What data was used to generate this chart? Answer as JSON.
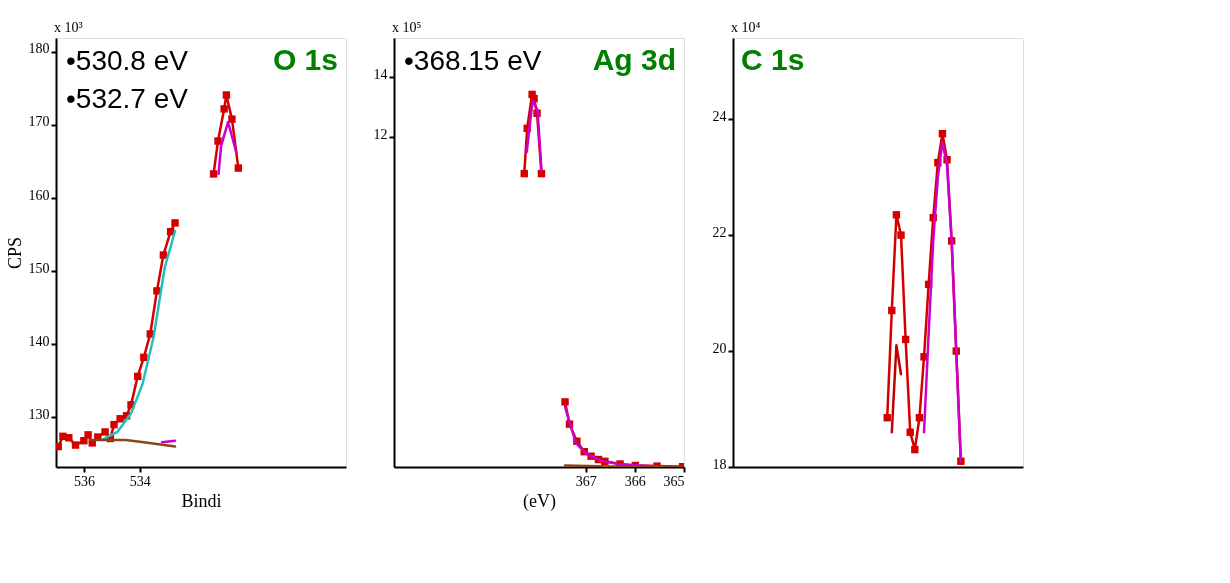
{
  "chart_data": [
    {
      "type": "line",
      "title": "O 1s",
      "ylabel": "CPS",
      "xlabel": "Bindi",
      "annotations": [
        "x 10³",
        "•530.8 eV",
        "•532.7 eV"
      ],
      "xlim": [
        537,
        526.6
      ],
      "xticks": [
        536,
        534
      ],
      "ylim": [
        123.2,
        181.9
      ],
      "yticks": [
        130,
        140,
        150,
        160,
        170,
        180
      ],
      "grid": false,
      "series": [
        {
          "color": "#d40000",
          "marker": "square",
          "x": [
            536.92,
            536.75,
            536.54,
            536.3,
            536.0,
            535.85,
            535.7,
            535.5,
            535.24,
            535.05,
            534.92,
            534.7,
            534.47,
            534.31,
            534.07,
            533.85,
            533.62,
            533.38,
            533.15,
            532.89,
            532.73,
            532.0,
            531.35,
            531.19,
            530.97,
            530.89,
            530.69,
            530.46
          ],
          "values": [
            126.0,
            127.4,
            127.2,
            126.2,
            126.8,
            127.6,
            126.5,
            127.3,
            128.0,
            127.1,
            129.0,
            129.8,
            130.2,
            131.7,
            135.6,
            138.2,
            141.4,
            147.3,
            152.2,
            155.4,
            156.6,
            null,
            163.3,
            167.8,
            172.2,
            174.1,
            170.8,
            164.1
          ]
        },
        {
          "color": "#20c0c0",
          "x": [
            535.3,
            534.8,
            534.3,
            533.9,
            533.5,
            533.1,
            532.73
          ],
          "values": [
            127.0,
            128.0,
            130.6,
            134.5,
            141.0,
            150.5,
            155.5
          ]
        },
        {
          "color": "#cc00cc",
          "x": [
            533.2,
            532.73,
            532.0,
            531.17,
            531.08,
            530.83,
            530.53
          ],
          "values": [
            126.6,
            126.8,
            null,
            163.3,
            167.1,
            170.4,
            166.2
          ]
        },
        {
          "color": "#8b4513",
          "x": [
            535.77,
            534.5,
            533.85,
            532.73
          ],
          "values": [
            126.9,
            126.9,
            126.6,
            126.0
          ]
        }
      ]
    },
    {
      "type": "line",
      "title": "Ag 3d",
      "xlabel": "(eV)",
      "annotations": [
        "x 10⁵",
        "•368.15 eV"
      ],
      "xlim": [
        370.9,
        365
      ],
      "xticks": [
        367,
        366,
        365
      ],
      "ylim": [
        1,
        15.3
      ],
      "yticks": [
        12,
        14
      ],
      "grid": false,
      "series": [
        {
          "color": "#d40000",
          "marker": "square",
          "x": [
            368.25,
            368.19,
            368.09,
            368.05,
            367.99,
            367.9
          ],
          "values": [
            10.78,
            12.29,
            13.42,
            13.28,
            12.79,
            10.78
          ]
        },
        {
          "color": "#d40000",
          "marker": "square",
          "x": [
            367.42,
            367.33,
            367.18,
            367.03,
            366.89,
            366.74,
            366.61,
            366.3,
            365.99,
            365.55,
            365.03
          ],
          "values": [
            3.17,
            2.43,
            1.86,
            1.51,
            1.36,
            1.25,
            1.19,
            1.1,
            1.05,
            1.03,
            1.01
          ]
        },
        {
          "color": "#cc00cc",
          "x": [
            368.2,
            368.08,
            367.98,
            367.9
          ],
          "values": [
            11.5,
            13.2,
            12.9,
            10.9
          ]
        },
        {
          "color": "#cc00cc",
          "x": [
            367.42,
            367.2,
            367.0,
            366.7,
            366.3,
            365.5,
            365.03
          ],
          "values": [
            3.0,
            1.8,
            1.45,
            1.22,
            1.08,
            1.02,
            1.0
          ]
        },
        {
          "color": "#8b4513",
          "x": [
            367.42,
            366.5,
            365.03
          ],
          "values": [
            1.05,
            1.02,
            1.0
          ]
        }
      ]
    },
    {
      "type": "line",
      "title": "C 1s",
      "annotations": [
        "x 10⁴"
      ],
      "categories": [
        null,
        null,
        null,
        null,
        null,
        null,
        null,
        null,
        null,
        null,
        null,
        null,
        null,
        null,
        null,
        null,
        null,
        null,
        null,
        null,
        null,
        null,
        null,
        null,
        null,
        null,
        null,
        null,
        null,
        null,
        null,
        null,
        null,
        null,
        null,
        null,
        null,
        null,
        null,
        null,
        null,
        null,
        null,
        null,
        null,
        null,
        null,
        null,
        null,
        null,
        null,
        null,
        null,
        null,
        null,
        null,
        null,
        null,
        null,
        null,
        null,
        null,
        null
      ],
      "ylim": [
        18,
        25.4
      ],
      "yticks": [
        18,
        20,
        22,
        24
      ],
      "tick_labels": "y",
      "grid": false,
      "series": [
        {
          "color": "#d40000",
          "marker": "square",
          "values": [
            null,
            null,
            null,
            null,
            null,
            null,
            null,
            null,
            null,
            null,
            null,
            null,
            null,
            null,
            null,
            null,
            null,
            null,
            null,
            null,
            null,
            null,
            null,
            null,
            null,
            null,
            null,
            null,
            null,
            null,
            null,
            null,
            null,
            18.85,
            20.7,
            22.35,
            22.0,
            20.2,
            18.6,
            18.3,
            18.85,
            19.9,
            21.15,
            22.3,
            23.25,
            23.75,
            23.3,
            21.9,
            20.0,
            18.1,
            null,
            null,
            null,
            null,
            null,
            null,
            null,
            null,
            null,
            null,
            null,
            null,
            null
          ]
        },
        {
          "color": "#c00000",
          "values": [
            null,
            null,
            null,
            null,
            null,
            null,
            null,
            null,
            null,
            null,
            null,
            null,
            null,
            null,
            null,
            null,
            null,
            null,
            null,
            null,
            null,
            null,
            null,
            null,
            null,
            null,
            null,
            null,
            null,
            null,
            null,
            null,
            null,
            null,
            18.6,
            20.1,
            19.6,
            null,
            null,
            null,
            null,
            null,
            null,
            null,
            null,
            null,
            null,
            null,
            null,
            null,
            null,
            null,
            null,
            null,
            null,
            null,
            null,
            null,
            null,
            null,
            null,
            null,
            null
          ]
        },
        {
          "color": "#cc00cc",
          "values": [
            null,
            null,
            null,
            null,
            null,
            null,
            null,
            null,
            null,
            null,
            null,
            null,
            null,
            null,
            null,
            null,
            null,
            null,
            null,
            null,
            null,
            null,
            null,
            null,
            null,
            null,
            null,
            null,
            null,
            null,
            null,
            null,
            null,
            null,
            null,
            null,
            null,
            null,
            null,
            null,
            null,
            18.6,
            20.3,
            21.9,
            23.0,
            23.6,
            23.2,
            21.9,
            20.0,
            18.1,
            null,
            null,
            null,
            null,
            null,
            null,
            null,
            null,
            null,
            null,
            null,
            null,
            null
          ]
        }
      ]
    }
  ]
}
